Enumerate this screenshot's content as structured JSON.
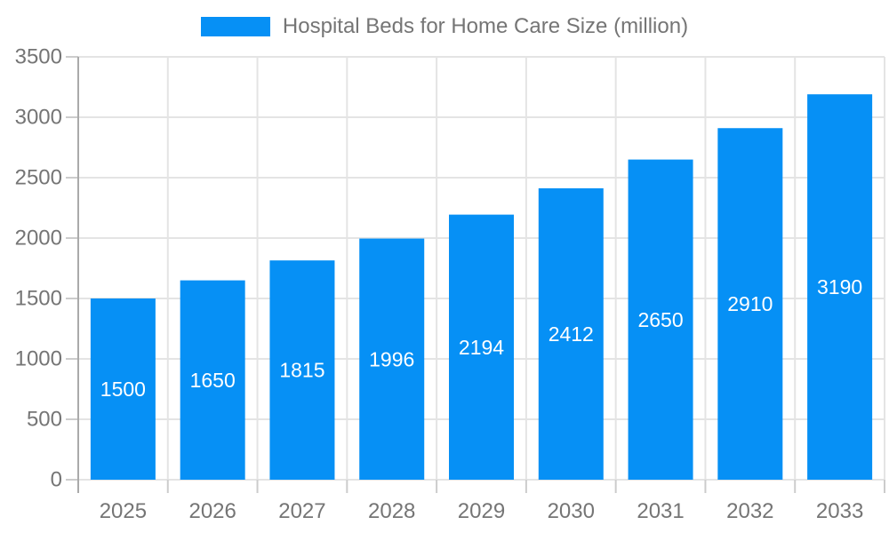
{
  "chart_data": {
    "type": "bar",
    "title": "Hospital Beds for Home Care Size (million)",
    "categories": [
      "2025",
      "2026",
      "2027",
      "2028",
      "2029",
      "2030",
      "2031",
      "2032",
      "2033"
    ],
    "series": [
      {
        "name": "Hospital Beds for Home Care Size (million)",
        "values": [
          1500,
          1650,
          1815,
          1996,
          2194,
          2412,
          2650,
          2910,
          3190
        ],
        "color": "#0690F5"
      }
    ],
    "xlabel": "",
    "ylabel": "",
    "ylim": [
      0,
      3500
    ],
    "yticks": [
      0,
      500,
      1000,
      1500,
      2000,
      2500,
      3000,
      3500
    ],
    "grid": true,
    "legend_position": "top",
    "bar_label_color": "#ffffff",
    "axis_text_color": "#757575",
    "grid_color": "#e4e4e4",
    "tick_color": "#cccccc",
    "axis_line_color": "#aaaaaa",
    "background_color": "#ffffff"
  }
}
